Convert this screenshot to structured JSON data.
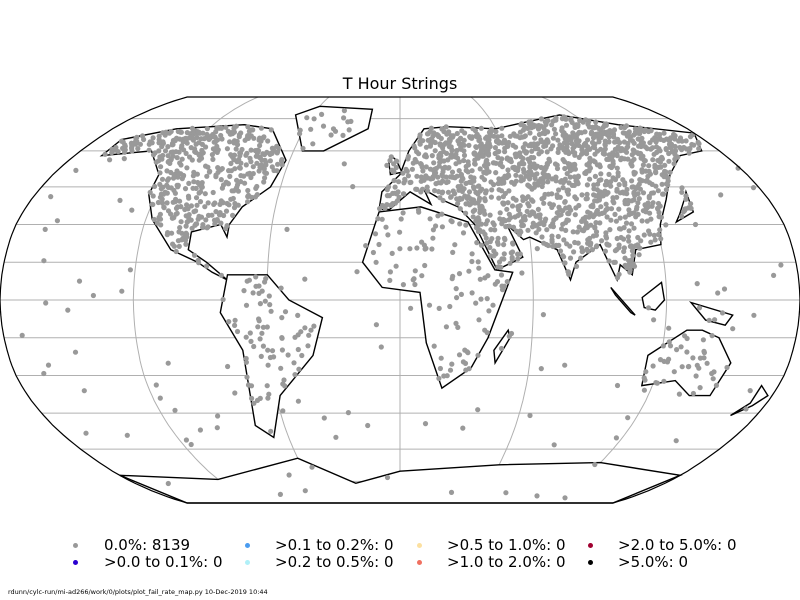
{
  "title": "T Hour Strings",
  "map": {
    "projection": "robinson",
    "gridlines": true,
    "point_color": "#999999",
    "total_points": 8139
  },
  "legend": [
    {
      "label": "0.0%: 8139",
      "color": "#999999"
    },
    {
      "label": ">0.0 to 0.1%: 0",
      "color": "#2a00d0"
    },
    {
      "label": ">0.1 to 0.2%: 0",
      "color": "#4a9cf0"
    },
    {
      "label": ">0.2 to 0.5%: 0",
      "color": "#b0f0f8"
    },
    {
      "label": ">0.5 to 1.0%: 0",
      "color": "#fce0a0"
    },
    {
      "label": ">1.0 to 2.0%: 0",
      "color": "#f07060"
    },
    {
      "label": ">2.0 to 5.0%: 0",
      "color": "#a00030"
    },
    {
      "label": ">5.0%: 0",
      "color": "#000000"
    }
  ],
  "footer": "rdunn/cylc-run/mi-ad266/work/0/plots/plot_fail_rate_map.py   10-Dec-2019 10:44"
}
